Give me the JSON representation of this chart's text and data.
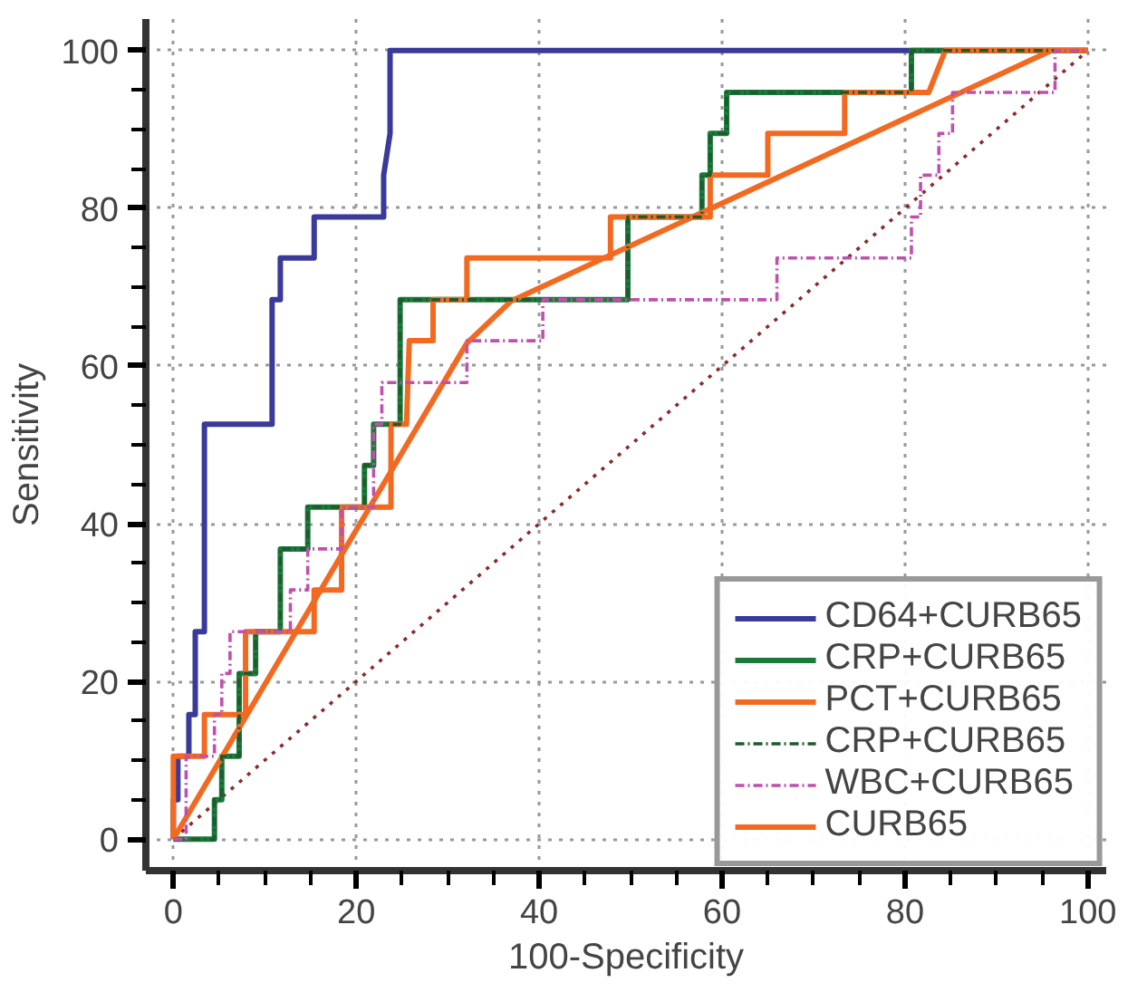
{
  "chart_data": {
    "type": "line",
    "xlabel": "100-Specificity",
    "ylabel": "Sensitivity",
    "xlim": [
      -3,
      102
    ],
    "ylim": [
      -4,
      104
    ],
    "xticks": [
      0,
      20,
      40,
      60,
      80,
      100
    ],
    "yticks": [
      0,
      20,
      40,
      60,
      80,
      100
    ],
    "grid": true,
    "legend": "bottom right",
    "series": [
      {
        "name": "CD64+CURB65",
        "color": "#3a3a9a",
        "line_style": "solid",
        "x": [
          0,
          0,
          0.5,
          0.5,
          1.7,
          1.7,
          2.4,
          2.4,
          3.4,
          3.4,
          10.8,
          10.8,
          11.7,
          11.7,
          15.4,
          15.4,
          23,
          23,
          23.7,
          23.7,
          100
        ],
        "values": [
          0,
          5,
          5,
          10.5,
          10.5,
          15.8,
          15.8,
          26.3,
          26.3,
          52.6,
          52.6,
          68.4,
          68.4,
          73.7,
          73.7,
          78.9,
          78.9,
          84.2,
          89.5,
          100,
          100
        ]
      },
      {
        "name": "CRP+CURB65",
        "color": "#1a7a3a",
        "line_style": "solid",
        "x": [
          0,
          4.5,
          4.5,
          5.3,
          5.3,
          7.2,
          7.2,
          9,
          9,
          11.7,
          11.7,
          14.7,
          14.7,
          20.9,
          20.9,
          21.9,
          21.9,
          24.8,
          24.8,
          49.7,
          49.7,
          57.8,
          57.8,
          58.7,
          58.7,
          60.5,
          60.5,
          80.7,
          80.7,
          100
        ],
        "values": [
          0,
          0,
          5,
          5,
          10.5,
          10.5,
          21,
          21,
          26.3,
          26.3,
          36.8,
          36.8,
          42.1,
          42.1,
          47.4,
          47.4,
          52.6,
          52.6,
          68.4,
          68.4,
          78.9,
          78.9,
          84.2,
          84.2,
          89.5,
          89.5,
          94.7,
          94.7,
          100,
          100
        ]
      },
      {
        "name": "PCT+CURB65",
        "color": "#f26a22",
        "line_style": "solid",
        "x": [
          0,
          0,
          3.4,
          3.4,
          7.9,
          7.9,
          15.4,
          15.4,
          18.4,
          18.4,
          23.8,
          23.8,
          25.5,
          25.8,
          28.4,
          28.4,
          32.1,
          32.1,
          47.8,
          47.8,
          58.7,
          58.7,
          65,
          65,
          73.4,
          73.4,
          82.6,
          84.4,
          100
        ],
        "values": [
          0,
          10.5,
          10.5,
          15.8,
          15.8,
          26.3,
          26.3,
          31.6,
          31.6,
          42.1,
          42.1,
          52.6,
          52.6,
          63.2,
          63.2,
          68.4,
          68.4,
          73.7,
          73.7,
          78.9,
          78.9,
          84.2,
          84.2,
          89.5,
          89.5,
          94.7,
          94.7,
          100,
          100
        ]
      },
      {
        "name": "CRP+CURB65",
        "color": "#1e5a2e",
        "line_style": "dashdot",
        "x": [
          0,
          4.5,
          4.5,
          5.3,
          5.3,
          7.2,
          7.2,
          9,
          9,
          11.7,
          11.7,
          14.7,
          14.7,
          20.9,
          20.9,
          21.9,
          21.9,
          24.8,
          24.8,
          49.7,
          49.7,
          57.8,
          57.8,
          58.7,
          58.7,
          60.5,
          60.5,
          80.7,
          80.7,
          100
        ],
        "values": [
          0,
          0,
          5,
          5,
          10.5,
          10.5,
          21,
          21,
          26.3,
          26.3,
          36.8,
          36.8,
          42.1,
          42.1,
          47.4,
          47.4,
          52.6,
          52.6,
          68.4,
          68.4,
          78.9,
          78.9,
          84.2,
          84.2,
          89.5,
          89.5,
          94.7,
          94.7,
          100,
          100
        ]
      },
      {
        "name": "WBC+CURB65",
        "color": "#c050b0",
        "line_style": "dashdot",
        "x": [
          0,
          1.4,
          1.4,
          4.5,
          4.5,
          5.3,
          5.3,
          6.2,
          6.2,
          12.8,
          12.8,
          14.7,
          14.7,
          18.4,
          18.4,
          21.9,
          21.9,
          22.8,
          22.8,
          32.1,
          32.1,
          40.4,
          40.4,
          66,
          66,
          80.7,
          80.7,
          81.7,
          81.7,
          83.7,
          83.7,
          85.2,
          85.2,
          96.4,
          96.4,
          100
        ],
        "values": [
          0,
          0,
          10.5,
          10.5,
          15.8,
          15.8,
          21,
          21,
          26.3,
          26.3,
          31.6,
          31.6,
          36.8,
          36.8,
          42.1,
          42.1,
          52.6,
          52.6,
          57.9,
          57.9,
          63.2,
          63.2,
          68.4,
          68.4,
          73.7,
          73.7,
          78.9,
          78.9,
          84.2,
          84.2,
          89.5,
          89.5,
          94.7,
          94.7,
          100,
          100
        ]
      },
      {
        "name": "CURB65",
        "color": "#f26a22",
        "line_style": "solid",
        "x": [
          0,
          32.1,
          36.9,
          96,
          100
        ],
        "values": [
          0,
          62.9,
          68.2,
          100,
          100
        ]
      },
      {
        "color": "#8b2a2a",
        "line_style": "dotted",
        "x": [
          0,
          100
        ],
        "values": [
          0,
          100
        ]
      }
    ]
  }
}
